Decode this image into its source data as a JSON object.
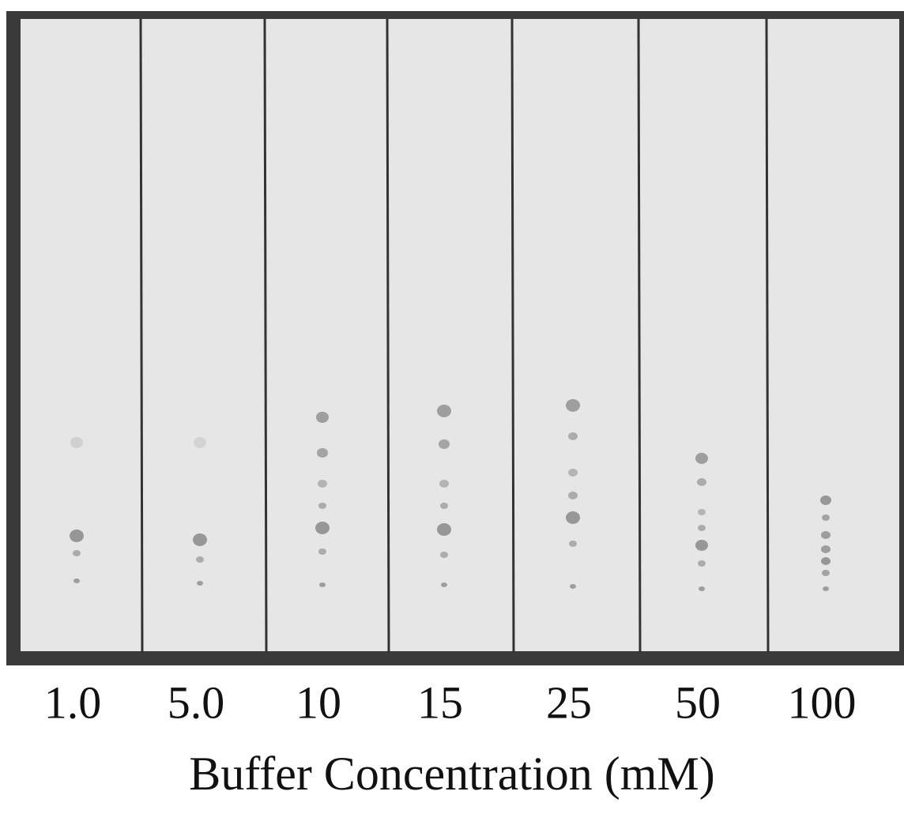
{
  "lanes": [
    "1.0",
    "5.0",
    "10",
    "15",
    "25",
    "50",
    "100"
  ],
  "axis_label": "Buffer Concentration (mM)"
}
